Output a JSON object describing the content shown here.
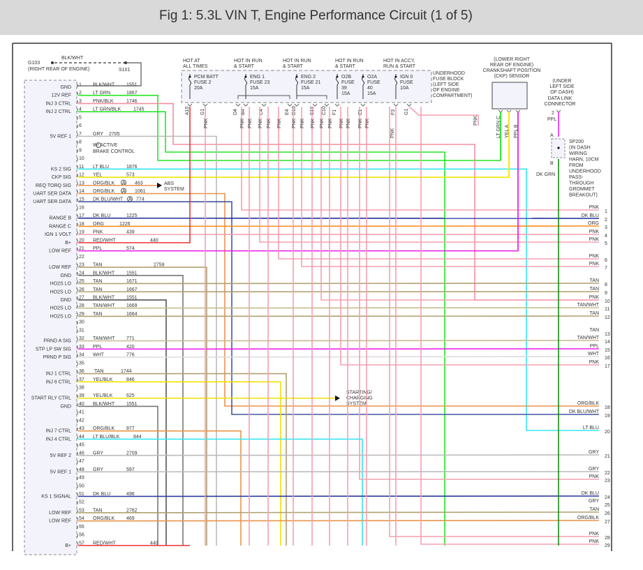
{
  "title": "Fig 1: 5.3L VIN T, Engine Performance Circuit (1 of 5)",
  "ground": {
    "name": "G103",
    "location": "(RIGHT REAR OF ENGINE)",
    "wire": "BLK/WHT",
    "splice": "S101"
  },
  "pcm_pins": [
    {
      "n": "1",
      "fn": "GND",
      "wire": "BLK/WHT",
      "ckt": "1551",
      "color": "#555555"
    },
    {
      "n": "2",
      "fn": "12V REF",
      "wire": "LT GRN",
      "ckt": "1867",
      "color": "#22e622"
    },
    {
      "n": "3",
      "fn": "INJ 3 CTRL",
      "wire": "PNK/BLK",
      "ckt": "1746",
      "color": "#f28fa0"
    },
    {
      "n": "4",
      "fn": "INJ 2 CTRL",
      "wire": "LT GRN/BLK",
      "ckt": "1745",
      "color": "#22e622"
    },
    {
      "n": "5",
      "fn": "",
      "wire": "",
      "ckt": "",
      "color": ""
    },
    {
      "n": "6",
      "fn": "",
      "wire": "",
      "ckt": "",
      "color": ""
    },
    {
      "n": "7",
      "fn": "5V REF 1",
      "wire": "GRY",
      "ckt": "2705",
      "color": "#bbbbbb"
    },
    {
      "n": "8",
      "fn": "",
      "wire": "",
      "ckt": "",
      "color": ""
    },
    {
      "n": "9",
      "fn": "",
      "wire": "",
      "ckt": "",
      "color": ""
    },
    {
      "n": "10",
      "fn": "",
      "wire": "",
      "ckt": "",
      "color": ""
    },
    {
      "n": "11",
      "fn": "KS 2 SIG",
      "wire": "LT BLU",
      "ckt": "1876",
      "color": "#33e6f0"
    },
    {
      "n": "12",
      "fn": "CKP SIG",
      "wire": "YEL",
      "ckt": "573",
      "color": "#f2e600"
    },
    {
      "n": "13",
      "fn": "REQ TORQ SIG",
      "wire": "ORG/BLK",
      "ckt": "463",
      "color": "#e8944a",
      "mark": "A"
    },
    {
      "n": "14",
      "fn": "UART SER DATA",
      "wire": "ORG/BLK",
      "ckt": "1061",
      "color": "#e8944a",
      "mark": "A"
    },
    {
      "n": "15",
      "fn": "UART SER DATA",
      "wire": "DK BLU/WHT",
      "ckt": "774",
      "color": "#4455a0",
      "mark": "A"
    },
    {
      "n": "16",
      "fn": "",
      "wire": "",
      "ckt": "",
      "color": ""
    },
    {
      "n": "17",
      "fn": "RANGE B",
      "wire": "DK BLU",
      "ckt": "1225",
      "color": "#1f2f9a"
    },
    {
      "n": "18",
      "fn": "RANGE C",
      "wire": "ORG",
      "ckt": "1226",
      "color": "#ff8c1a"
    },
    {
      "n": "19",
      "fn": "IGN 1 VOLT",
      "wire": "PNK",
      "ckt": "439",
      "color": "#f4a0b0"
    },
    {
      "n": "20",
      "fn": "B+",
      "wire": "RED/WHT",
      "ckt": "440",
      "color": "#f03030"
    },
    {
      "n": "21",
      "fn": "LOW REF",
      "wire": "PPL",
      "ckt": "574",
      "color": "#ee22ee"
    },
    {
      "n": "22",
      "fn": "",
      "wire": "",
      "ckt": "",
      "color": ""
    },
    {
      "n": "23",
      "fn": "LOW REF",
      "wire": "TAN",
      "ckt": "2759",
      "color": "#b0a070"
    },
    {
      "n": "24",
      "fn": "GND",
      "wire": "BLK/WHT",
      "ckt": "1551",
      "color": "#777777"
    },
    {
      "n": "25",
      "fn": "HO2S LO",
      "wire": "TAN",
      "ckt": "1671",
      "color": "#b0a070"
    },
    {
      "n": "26",
      "fn": "HO2S LO",
      "wire": "TAN",
      "ckt": "1667",
      "color": "#b0a070"
    },
    {
      "n": "27",
      "fn": "GND",
      "wire": "BLK/WHT",
      "ckt": "1551",
      "color": "#555555"
    },
    {
      "n": "28",
      "fn": "HO2S LO",
      "wire": "TAN/WHT",
      "ckt": "1669",
      "color": "#c8bc90"
    },
    {
      "n": "29",
      "fn": "HO2S LO",
      "wire": "TAN",
      "ckt": "1664",
      "color": "#b0a070"
    },
    {
      "n": "30",
      "fn": "",
      "wire": "",
      "ckt": "",
      "color": ""
    },
    {
      "n": "31",
      "fn": "",
      "wire": "",
      "ckt": "",
      "color": ""
    },
    {
      "n": "32",
      "fn": "PRND A SIG",
      "wire": "TAN/WHT",
      "ckt": "771",
      "color": "#c8bc90"
    },
    {
      "n": "33",
      "fn": "STP LP SW SIG",
      "wire": "PPL",
      "ckt": "420",
      "color": "#ee22ee"
    },
    {
      "n": "34",
      "fn": "PRND P SIG",
      "wire": "WHT",
      "ckt": "776",
      "color": "#dddddd"
    },
    {
      "n": "35",
      "fn": "",
      "wire": "",
      "ckt": "",
      "color": ""
    },
    {
      "n": "36",
      "fn": "INJ 1 CTRL",
      "wire": "TAN",
      "ckt": "1744",
      "color": "#b0a070"
    },
    {
      "n": "37",
      "fn": "INJ 6 CTRL",
      "wire": "YEL/BLK",
      "ckt": "846",
      "color": "#f0e000"
    },
    {
      "n": "38",
      "fn": "",
      "wire": "",
      "ckt": "",
      "color": ""
    },
    {
      "n": "39",
      "fn": "START RLY CTRL",
      "wire": "YEL/BLK",
      "ckt": "625",
      "color": "#f0e000"
    },
    {
      "n": "40",
      "fn": "GND",
      "wire": "BLK/WHT",
      "ckt": "1551",
      "color": "#777777"
    },
    {
      "n": "41",
      "fn": "",
      "wire": "",
      "ckt": "",
      "color": ""
    },
    {
      "n": "42",
      "fn": "",
      "wire": "",
      "ckt": "",
      "color": ""
    },
    {
      "n": "43",
      "fn": "INJ 7 CTRL",
      "wire": "ORG/BLK",
      "ckt": "877",
      "color": "#e8944a"
    },
    {
      "n": "44",
      "fn": "INJ 4 CTRL",
      "wire": "LT BLU/BLK",
      "ckt": "844",
      "color": "#33e6f0"
    },
    {
      "n": "45",
      "fn": "",
      "wire": "",
      "ckt": "",
      "color": ""
    },
    {
      "n": "46",
      "fn": "5V REF 2",
      "wire": "GRY",
      "ckt": "2709",
      "color": "#bbbbbb"
    },
    {
      "n": "47",
      "fn": "",
      "wire": "",
      "ckt": "",
      "color": ""
    },
    {
      "n": "48",
      "fn": "5V REF 1",
      "wire": "GRY",
      "ckt": "597",
      "color": "#bbbbbb"
    },
    {
      "n": "49",
      "fn": "",
      "wire": "",
      "ckt": "",
      "color": ""
    },
    {
      "n": "50",
      "fn": "",
      "wire": "",
      "ckt": "",
      "color": ""
    },
    {
      "n": "51",
      "fn": "KS 1 SIGNAL",
      "wire": "DK BLU",
      "ckt": "496",
      "color": "#2a3a9a"
    },
    {
      "n": "52",
      "fn": "",
      "wire": "",
      "ckt": "",
      "color": ""
    },
    {
      "n": "53",
      "fn": "LOW REF",
      "wire": "TAN",
      "ckt": "2762",
      "color": "#b0a070"
    },
    {
      "n": "54",
      "fn": "LOW REF",
      "wire": "ORG/BLK",
      "ckt": "469",
      "color": "#e8944a"
    },
    {
      "n": "55",
      "fn": "",
      "wire": "",
      "ckt": "",
      "color": ""
    },
    {
      "n": "56",
      "fn": "",
      "wire": "",
      "ckt": "",
      "color": ""
    },
    {
      "n": "57",
      "fn": "B+",
      "wire": "RED/WHT",
      "ckt": "440",
      "color": "#f03030"
    }
  ],
  "notes": {
    "active_brake": "W/ ACTIVE\nBRAKE CONTROL",
    "abs": "ABS\nSYSTEM",
    "starting": "STARTING/\nCHARGING\nSYSTEM"
  },
  "fuse_block": {
    "label": "UNDERHOOD\nFUSE BLOCK",
    "location": "(LEFT SIDE\nOF ENGINE\nCOMPARTMENT)",
    "fuses": [
      {
        "hot": "HOT AT\nALL TIMES",
        "name": "PCM BATT\nFUSE 2\n20A",
        "pins": [
          "A10",
          "G1"
        ]
      },
      {
        "hot": "HOT IN RUN\n& START",
        "name": "ENG 1\nFUSE 23\n15A",
        "pins": [
          "D4",
          "B4",
          "C4",
          "E4"
        ]
      },
      {
        "hot": "HOT IN RUN\n& START",
        "name": "ENG 2\nFUSE 21\n15A",
        "pins": [
          "D10",
          "E10",
          "C10"
        ]
      },
      {
        "hot": "HOT IN RUN\n& START",
        "name": "O2B\nFUSE\n39\n15A",
        "pins": [
          "F1"
        ]
      },
      {
        "hot": "",
        "name": "O2A\nFUSE\n40\n15A",
        "pins": [
          "E1"
        ]
      },
      {
        "hot": "HOT IN ACCY,\nRUN & START",
        "name": "IGN 0\nFUSE\n10A",
        "pins": [
          "F3",
          "G1"
        ]
      }
    ],
    "wire_label": "PNK"
  },
  "ckp": {
    "location": "(LOWER RIGHT\nREAR OF ENGINE)",
    "name": "CRANKSHAFT POSITION\n(CKP) SENSOR",
    "pins": [
      "LT GRN  C",
      "YEL  A",
      "PPL  B"
    ]
  },
  "dlc": {
    "location": "(UNDER\nLEFT SIDE\nOF DASH)",
    "name": "DATA LINK\nCONNECTOR",
    "pin": "2",
    "wire": "PPL"
  },
  "splice": {
    "pin_a": "A",
    "pin_b": "B",
    "text": "SP200\n(IN DASH\nWIRING\nHARN, 10CM\nFROM\nUNDERHOOD\nPASS-\nTHROUGH\nGROMMET\nBREAKOUT)",
    "wire": "DK GRN"
  },
  "right_terminals": [
    {
      "n": "1",
      "wire": "PNK",
      "color": "#f4a0b0"
    },
    {
      "n": "2",
      "wire": "DK BLU",
      "color": "#1f2f9a"
    },
    {
      "n": "3",
      "wire": "ORG",
      "color": "#ff8c1a"
    },
    {
      "n": "4",
      "wire": "PNK",
      "color": "#f4a0b0"
    },
    {
      "n": "5",
      "wire": "PNK",
      "color": "#f4a0b0"
    },
    {
      "n": "6",
      "wire": "PNK",
      "color": "#f4a0b0"
    },
    {
      "n": "7",
      "wire": "PNK",
      "color": "#f4a0b0"
    },
    {
      "n": "8",
      "wire": "TAN",
      "color": "#b0a070"
    },
    {
      "n": "9",
      "wire": "TAN",
      "color": "#b0a070"
    },
    {
      "n": "10",
      "wire": "PNK",
      "color": "#f4a0b0"
    },
    {
      "n": "11",
      "wire": "TAN/WHT",
      "color": "#c8bc90"
    },
    {
      "n": "12",
      "wire": "TAN",
      "color": "#b0a070"
    },
    {
      "n": "13",
      "wire": "TAN",
      "color": "#b0a070"
    },
    {
      "n": "14",
      "wire": "TAN/WHT",
      "color": "#c8bc90"
    },
    {
      "n": "15",
      "wire": "PPL",
      "color": "#ee22ee"
    },
    {
      "n": "16",
      "wire": "WHT",
      "color": "#dddddd"
    },
    {
      "n": "17",
      "wire": "PNK",
      "color": "#f4a0b0"
    },
    {
      "n": "18",
      "wire": "ORG/BLK",
      "color": "#e8944a"
    },
    {
      "n": "19",
      "wire": "DK BLU/WHT",
      "color": "#4455a0"
    },
    {
      "n": "20",
      "wire": "LT BLU",
      "color": "#33e6f0"
    },
    {
      "n": "21",
      "wire": "GRY",
      "color": "#bbbbbb"
    },
    {
      "n": "22",
      "wire": "GRY",
      "color": "#bbbbbb"
    },
    {
      "n": "23",
      "wire": "PNK",
      "color": "#f4a0b0"
    },
    {
      "n": "24",
      "wire": "DK BLU",
      "color": "#2a3a9a"
    },
    {
      "n": "25",
      "wire": "GRY",
      "color": "#bbbbbb"
    },
    {
      "n": "26",
      "wire": "TAN",
      "color": "#b0a070"
    },
    {
      "n": "27",
      "wire": "ORG/BLK",
      "color": "#e8944a"
    },
    {
      "n": "28",
      "wire": "PNK",
      "color": "#f4a0b0"
    },
    {
      "n": "29",
      "wire": "PNK",
      "color": "#f4a0b0"
    }
  ]
}
